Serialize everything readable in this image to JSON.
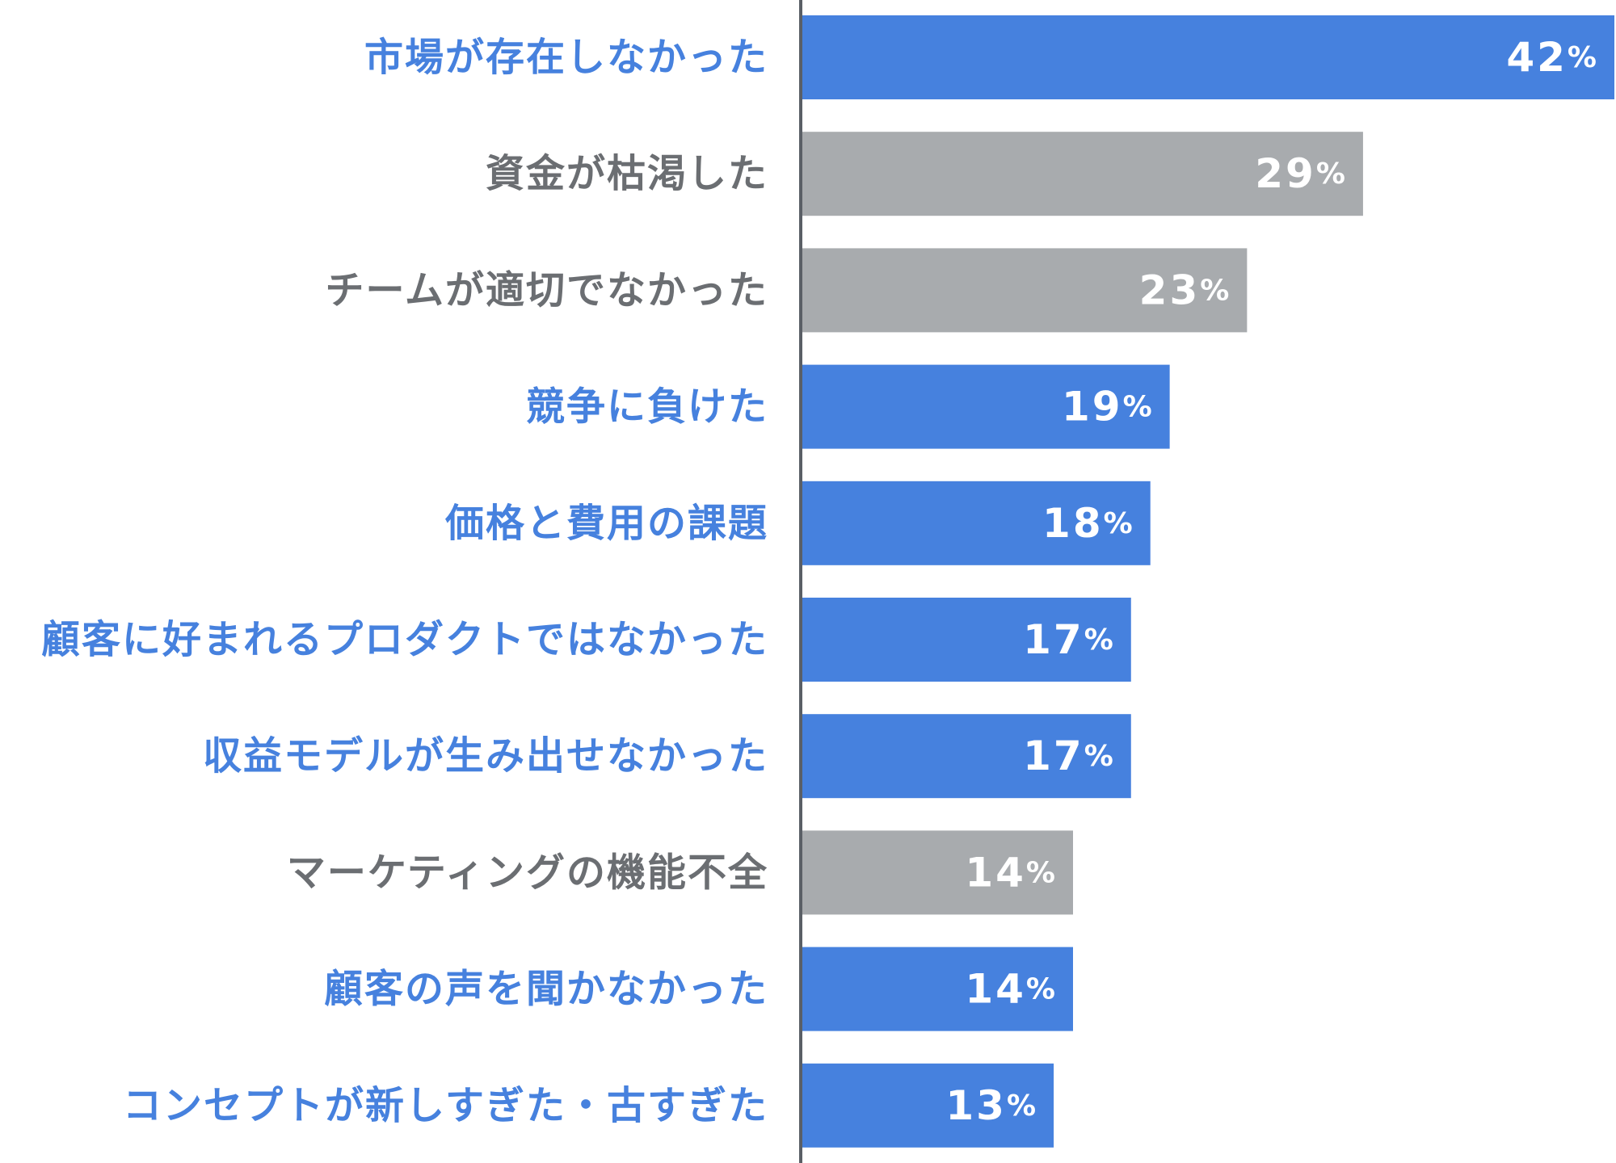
{
  "chart_data": {
    "type": "bar",
    "orientation": "horizontal",
    "categories": [
      "市場が存在しなかった",
      "資金が枯渇した",
      "チームが適切でなかった",
      "競争に負けた",
      "価格と費用の課題",
      "顧客に好まれるプロダクトではなかった",
      "収益モデルが生み出せなかった",
      "マーケティングの機能不全",
      "顧客の声を聞かなかった",
      "コンセプトが新しすぎた・古すぎた"
    ],
    "values": [
      42,
      29,
      23,
      19,
      18,
      17,
      17,
      14,
      14,
      13
    ],
    "value_unit": "%",
    "highlighted": [
      true,
      false,
      false,
      true,
      true,
      true,
      true,
      false,
      true,
      true
    ],
    "colors": {
      "highlight_bar": "#4681de",
      "highlight_label": "#4681de",
      "muted_bar": "#a8abae",
      "muted_label": "#6b6e72",
      "axis_line": "#5a5f66",
      "value_text": "#ffffff"
    },
    "title": "",
    "xlabel": "",
    "ylabel": "",
    "grid": false,
    "legend": "none"
  }
}
